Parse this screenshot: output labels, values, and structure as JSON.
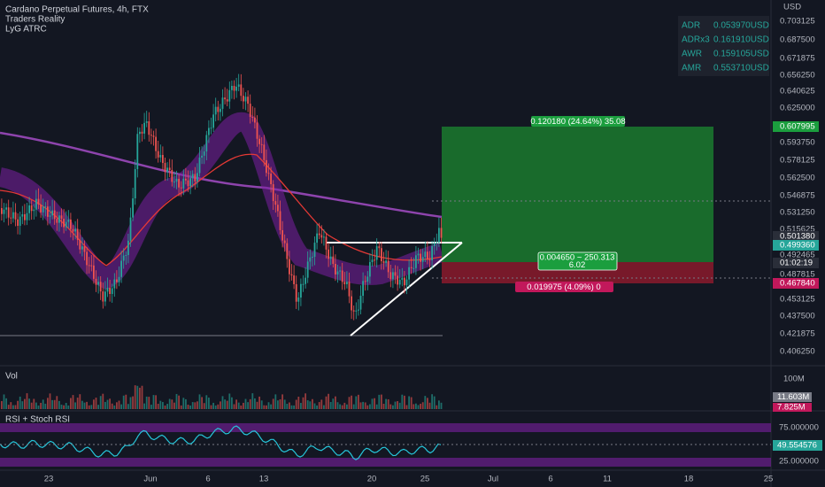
{
  "header": {
    "symbol": "Cardano Perpetual Futures, 4h, FTX",
    "indicators": [
      "Traders Reality",
      "LyG ATRC"
    ]
  },
  "info_box": [
    {
      "label": "ADR",
      "value": "0.053970USD"
    },
    {
      "label": "ADRx3",
      "value": "0.161910USD"
    },
    {
      "label": "AWR",
      "value": "0.159105USD"
    },
    {
      "label": "AMR",
      "value": "0.553710USD"
    }
  ],
  "price_axis": {
    "currency": "USD",
    "labels": [
      "0.703125",
      "0.687500",
      "0.671875",
      "0.656250",
      "0.640625",
      "0.625000",
      "0.593750",
      "0.578125",
      "0.562500",
      "0.546875",
      "0.531250",
      "0.515625",
      "0.492465",
      "0.487815",
      "0.453125",
      "0.437500",
      "0.421875",
      "0.406250"
    ],
    "badges": {
      "target": "0.607995",
      "last_high": "0.501380",
      "last": "0.499360",
      "countdown": "01:02:19",
      "stop": "0.467840"
    }
  },
  "position": {
    "target": "0.120180 (24.64%) 35.08",
    "middle": "0.004650 ~ 250.313",
    "middle_sub": "6.02",
    "stop": "0.019975 (4.09%) 0"
  },
  "volume": {
    "title": "Vol",
    "axis": "100M",
    "badge_a": "11.603M",
    "badge_b": "7.825M"
  },
  "rsi": {
    "title": "RSI + Stoch RSI",
    "upper": "75.000000",
    "value": "49.554576",
    "lower": "25.000000"
  },
  "time_axis": [
    "23",
    "Jun",
    "6",
    "13",
    "20",
    "25",
    "Jul",
    "6",
    "11",
    "18",
    "25"
  ]
}
